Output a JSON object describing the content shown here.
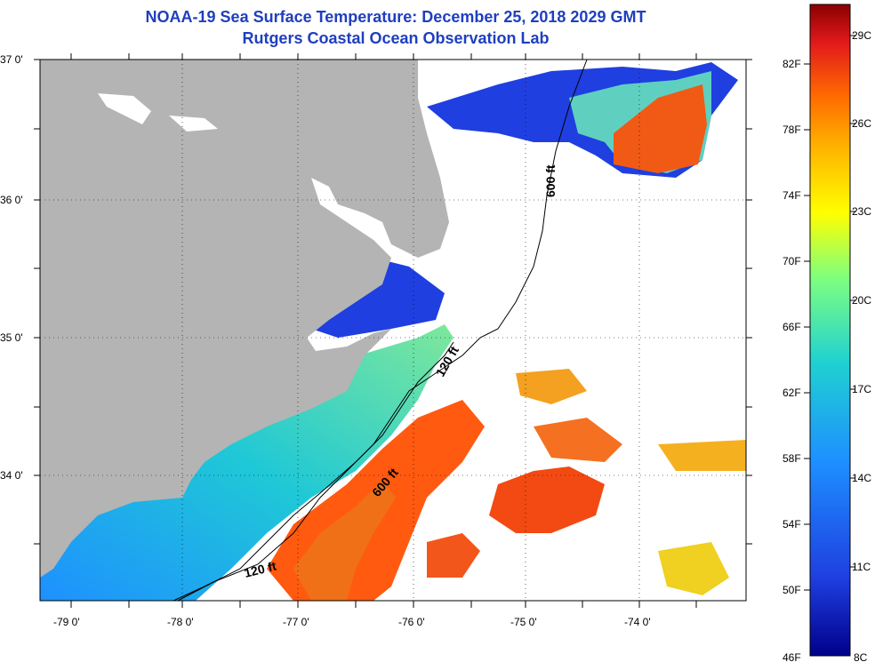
{
  "title": "NOAA-19 Sea Surface Temperature:  December 25, 2018 2029 GMT",
  "subtitle": "Rutgers Coastal Ocean Observation Lab",
  "lat_labels": [
    "37 0'",
    "36 0'",
    "35 0'",
    "34 0'"
  ],
  "lon_labels": [
    "-79 0'",
    "-78 0'",
    "-77 0'",
    "-76 0'",
    "-75 0'",
    "-74 0'"
  ],
  "colorbar": {
    "f_labels": [
      "82F",
      "78F",
      "74F",
      "70F",
      "66F",
      "62F",
      "58F",
      "54F",
      "50F",
      "46F"
    ],
    "c_labels": [
      "29C",
      "26C",
      "23C",
      "20C",
      "17C",
      "14C",
      "11C",
      "8C"
    ],
    "colors": [
      "#8b0000",
      "#e31a1c",
      "#ff6a00",
      "#ffb400",
      "#ffff00",
      "#7fff7f",
      "#1fd1d1",
      "#1e90ff",
      "#1f3fe0",
      "#00008b"
    ]
  },
  "contours": {
    "shelf_label": "120 ft",
    "slope_label": "600 ft"
  },
  "colors": {
    "land": "#b4b4b4",
    "no_data": "#ffffff",
    "title": "#1f3fbf"
  }
}
